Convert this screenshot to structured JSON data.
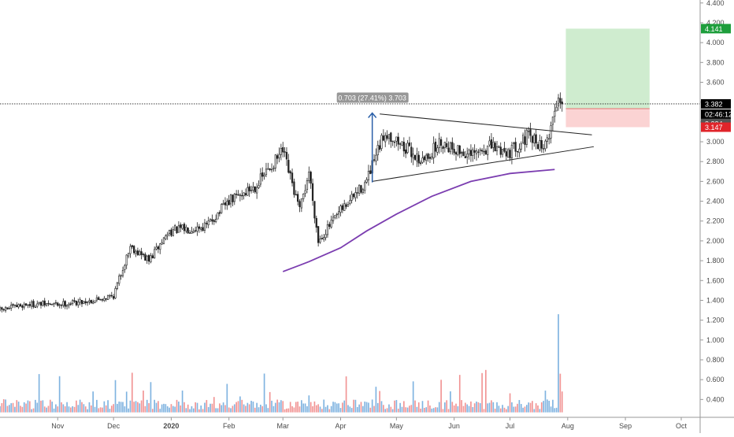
{
  "chart_data": {
    "type": "candlestick",
    "title": "",
    "xlabel": "",
    "ylabel": "",
    "ylim": [
      0.22,
      4.43
    ],
    "y_ticks": [
      "4.400",
      "4.200",
      "4.000",
      "3.800",
      "3.600",
      "3.400",
      "3.200",
      "3.000",
      "2.800",
      "2.600",
      "2.400",
      "2.200",
      "2.000",
      "1.800",
      "1.600",
      "1.400",
      "1.200",
      "1.000",
      "0.800",
      "0.600",
      "0.400"
    ],
    "x_ticks": [
      "Nov",
      "Dec",
      "2020",
      "Feb",
      "Mar",
      "Apr",
      "May",
      "Jun",
      "Jul",
      "Aug",
      "Sep",
      "Oct"
    ],
    "date_range": [
      "2019-10-01",
      "2020-07-29"
    ],
    "price_path_keypoints": [
      {
        "date": "2019-10-01",
        "close": 1.3
      },
      {
        "date": "2019-10-15",
        "close": 1.36
      },
      {
        "date": "2019-11-01",
        "close": 1.36
      },
      {
        "date": "2019-11-20",
        "close": 1.4
      },
      {
        "date": "2019-12-01",
        "close": 1.45
      },
      {
        "date": "2019-12-10",
        "close": 1.95
      },
      {
        "date": "2019-12-20",
        "close": 1.8
      },
      {
        "date": "2019-12-31",
        "close": 2.1
      },
      {
        "date": "2020-01-20",
        "close": 2.15
      },
      {
        "date": "2020-02-01",
        "close": 2.4
      },
      {
        "date": "2020-02-15",
        "close": 2.55
      },
      {
        "date": "2020-03-01",
        "close": 2.9
      },
      {
        "date": "2020-03-10",
        "close": 2.3
      },
      {
        "date": "2020-03-15",
        "close": 2.7
      },
      {
        "date": "2020-03-20",
        "close": 2.0
      },
      {
        "date": "2020-04-01",
        "close": 2.3
      },
      {
        "date": "2020-04-15",
        "close": 2.6
      },
      {
        "date": "2020-04-25",
        "close": 3.1
      },
      {
        "date": "2020-05-05",
        "close": 2.95
      },
      {
        "date": "2020-05-15",
        "close": 2.8
      },
      {
        "date": "2020-05-25",
        "close": 3.0
      },
      {
        "date": "2020-06-10",
        "close": 2.85
      },
      {
        "date": "2020-06-20",
        "close": 2.95
      },
      {
        "date": "2020-07-01",
        "close": 2.9
      },
      {
        "date": "2020-07-10",
        "close": 3.05
      },
      {
        "date": "2020-07-20",
        "close": 2.95
      },
      {
        "date": "2020-07-27",
        "close": 3.45
      },
      {
        "date": "2020-07-29",
        "close": 3.382
      }
    ],
    "moving_average": [
      {
        "date": "2020-03-01",
        "value": 1.69
      },
      {
        "date": "2020-03-15",
        "value": 1.79
      },
      {
        "date": "2020-04-01",
        "value": 1.93
      },
      {
        "date": "2020-04-15",
        "value": 2.1
      },
      {
        "date": "2020-05-01",
        "value": 2.27
      },
      {
        "date": "2020-05-20",
        "value": 2.45
      },
      {
        "date": "2020-06-10",
        "value": 2.6
      },
      {
        "date": "2020-07-01",
        "value": 2.68
      },
      {
        "date": "2020-07-25",
        "value": 2.72
      }
    ],
    "triangle_upper": [
      {
        "date": "2020-04-22",
        "value": 3.28
      },
      {
        "date": "2020-08-14",
        "value": 3.07
      }
    ],
    "triangle_lower": [
      {
        "date": "2020-04-18",
        "value": 2.6
      },
      {
        "date": "2020-08-15",
        "value": 2.95
      }
    ],
    "measure_tool": {
      "label": "0.703 (27.41%) 3.703",
      "from_value": 2.59,
      "to_value": 3.29
    },
    "long_position": {
      "target": 4.141,
      "entry": 3.334,
      "stop": 3.147
    },
    "current_price": 3.382,
    "countdown": "02:46:12",
    "volume_bars": "blue up / red down, scaled to the lower axis region"
  },
  "colors": {
    "up_volume": "#7fb3e0",
    "down_volume": "#f19494",
    "ma_line": "#7b3db0",
    "target_badge": "#1e9e3c",
    "stop_badge": "#e0242a",
    "measure_arrow": "#2a5fa8",
    "profit_zone": "#cfeccf",
    "loss_zone": "#fbd3d3"
  },
  "badges": {
    "target": "4.141",
    "current": "3.382",
    "countdown": "02:46:12",
    "entry": "3.334",
    "stop": "3.147"
  }
}
